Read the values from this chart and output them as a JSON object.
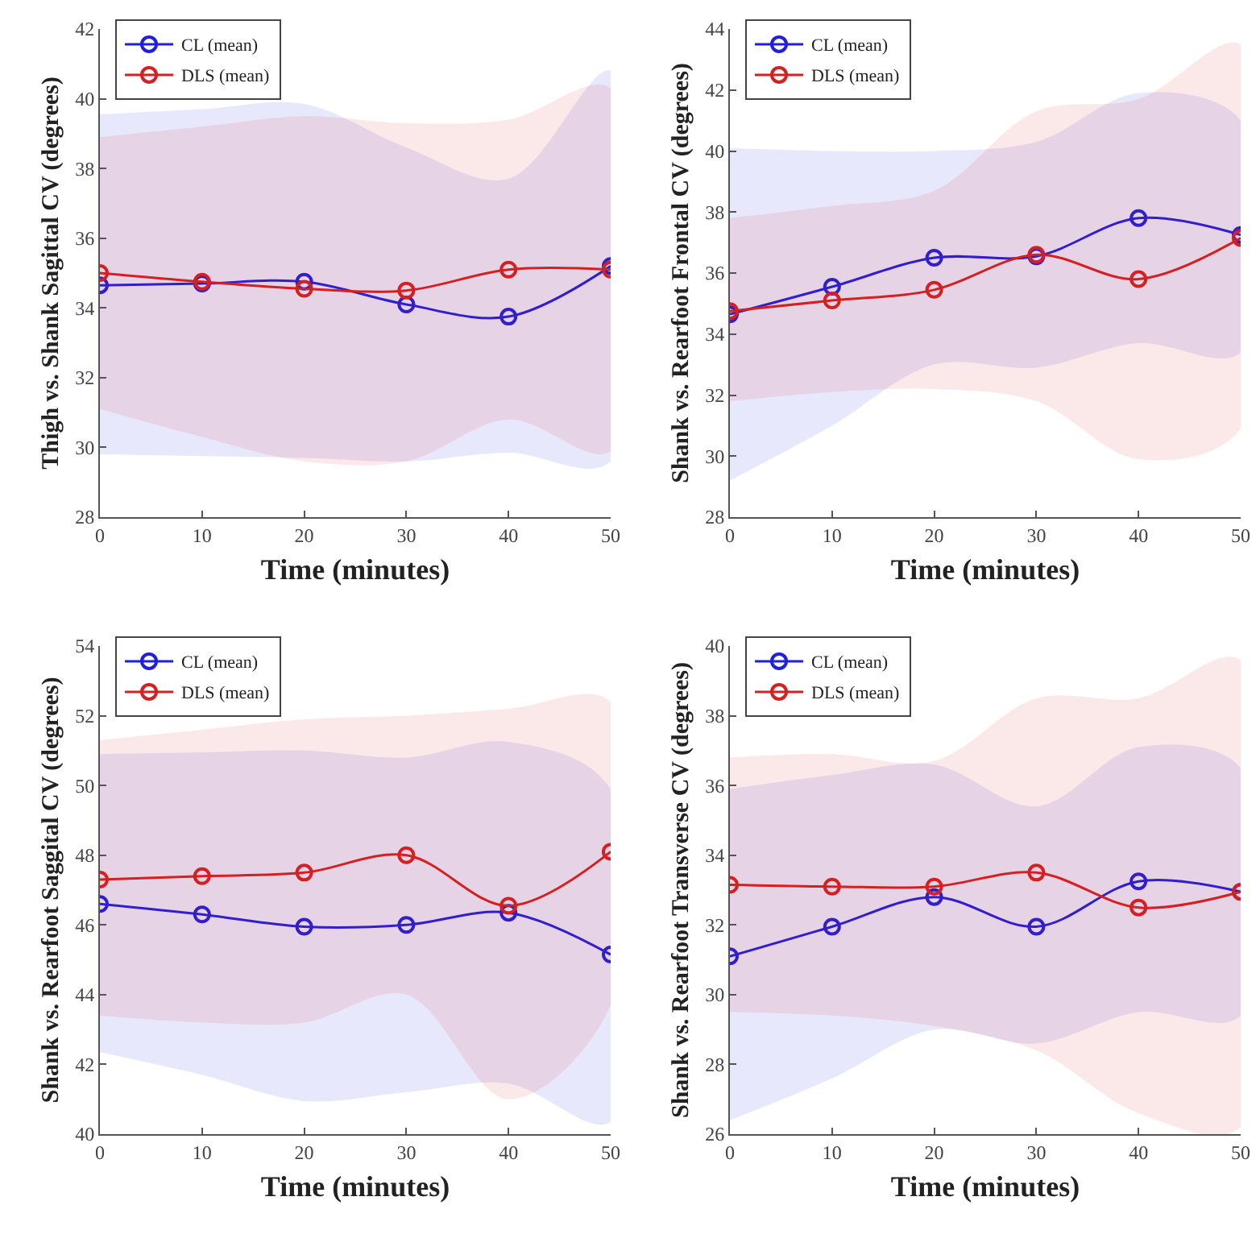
{
  "chart_data": [
    {
      "type": "line",
      "xlabel": "Time (minutes)",
      "ylabel": "Thigh vs. Shank Sagittal CV (degrees)",
      "x": [
        0,
        10,
        20,
        30,
        40,
        50
      ],
      "xlim": [
        0,
        50
      ],
      "xticks": [
        0,
        10,
        20,
        30,
        40,
        50
      ],
      "ylim": [
        28,
        42
      ],
      "yticks": [
        28,
        30,
        32,
        34,
        36,
        38,
        40,
        42
      ],
      "grid": false,
      "legend": "top left",
      "marker": "circle",
      "line_style": "solid",
      "series": [
        {
          "name": "CL (mean)",
          "color": "#1f1fe0",
          "values": [
            34.65,
            34.7,
            34.75,
            34.1,
            33.75,
            35.2
          ],
          "lower": [
            29.8,
            29.75,
            29.7,
            29.6,
            29.85,
            29.6
          ],
          "upper": [
            39.55,
            39.7,
            39.85,
            38.6,
            37.7,
            40.8
          ]
        },
        {
          "name": "DLS (mean)",
          "color": "#d42020",
          "values": [
            35.0,
            34.75,
            34.55,
            34.5,
            35.1,
            35.1
          ],
          "lower": [
            31.1,
            30.3,
            29.6,
            29.6,
            30.8,
            29.9
          ],
          "upper": [
            38.9,
            39.2,
            39.5,
            39.3,
            39.4,
            40.3
          ]
        }
      ]
    },
    {
      "type": "line",
      "xlabel": "Time (minutes)",
      "ylabel": "Shank vs. Rearfoot Frontal CV (degrees)",
      "x": [
        0,
        10,
        20,
        30,
        40,
        50
      ],
      "xlim": [
        0,
        50
      ],
      "xticks": [
        0,
        10,
        20,
        30,
        40,
        50
      ],
      "ylim": [
        28,
        44
      ],
      "yticks": [
        28,
        30,
        32,
        34,
        36,
        38,
        40,
        42,
        44
      ],
      "grid": false,
      "legend": "top left",
      "marker": "circle",
      "line_style": "solid",
      "series": [
        {
          "name": "CL (mean)",
          "color": "#1f1fe0",
          "values": [
            34.65,
            35.55,
            36.5,
            36.55,
            37.8,
            37.25
          ],
          "lower": [
            29.2,
            31.0,
            33.0,
            32.9,
            33.7,
            33.4
          ],
          "upper": [
            40.1,
            40.0,
            40.0,
            40.3,
            41.9,
            41.0
          ]
        },
        {
          "name": "DLS (mean)",
          "color": "#d42020",
          "values": [
            34.75,
            35.1,
            35.45,
            36.6,
            35.8,
            37.15
          ],
          "lower": [
            31.8,
            32.1,
            32.2,
            31.8,
            29.9,
            30.9
          ],
          "upper": [
            37.8,
            38.2,
            38.7,
            41.3,
            41.7,
            43.5
          ]
        }
      ]
    },
    {
      "type": "line",
      "xlabel": "Time (minutes)",
      "ylabel": "Shank vs. Rearfoot Saggital CV (degrees)",
      "x": [
        0,
        10,
        20,
        30,
        40,
        50
      ],
      "xlim": [
        0,
        50
      ],
      "xticks": [
        0,
        10,
        20,
        30,
        40,
        50
      ],
      "ylim": [
        40,
        54
      ],
      "yticks": [
        40,
        42,
        44,
        46,
        48,
        50,
        52,
        54
      ],
      "grid": false,
      "legend": "top left",
      "marker": "circle",
      "line_style": "solid",
      "series": [
        {
          "name": "CL (mean)",
          "color": "#1f1fe0",
          "values": [
            46.6,
            46.3,
            45.95,
            46.0,
            46.35,
            45.15
          ],
          "lower": [
            42.35,
            41.7,
            40.95,
            41.2,
            41.45,
            40.35
          ],
          "upper": [
            50.9,
            50.95,
            51.0,
            50.8,
            51.25,
            49.9
          ]
        },
        {
          "name": "DLS (mean)",
          "color": "#d42020",
          "values": [
            47.3,
            47.4,
            47.5,
            48.0,
            46.55,
            48.1
          ],
          "lower": [
            43.4,
            43.2,
            43.2,
            44.0,
            41.0,
            43.7
          ],
          "upper": [
            51.3,
            51.6,
            51.9,
            52.0,
            52.2,
            52.4
          ]
        }
      ]
    },
    {
      "type": "line",
      "xlabel": "Time (minutes)",
      "ylabel": "Shank vs. Rearfoot Transverse CV (degrees)",
      "x": [
        0,
        10,
        20,
        30,
        40,
        50
      ],
      "xlim": [
        0,
        50
      ],
      "xticks": [
        0,
        10,
        20,
        30,
        40,
        50
      ],
      "ylim": [
        26,
        40
      ],
      "yticks": [
        26,
        28,
        30,
        32,
        34,
        36,
        38,
        40
      ],
      "grid": false,
      "legend": "top left",
      "marker": "circle",
      "line_style": "solid",
      "series": [
        {
          "name": "CL (mean)",
          "color": "#1f1fe0",
          "values": [
            31.1,
            31.95,
            32.8,
            31.95,
            33.25,
            32.95
          ],
          "lower": [
            26.4,
            27.6,
            29.0,
            28.6,
            29.5,
            29.4
          ],
          "upper": [
            35.9,
            36.3,
            36.6,
            35.4,
            37.1,
            36.5
          ]
        },
        {
          "name": "DLS (mean)",
          "color": "#d42020",
          "values": [
            33.15,
            33.1,
            33.1,
            33.5,
            32.5,
            32.95
          ],
          "lower": [
            29.5,
            29.4,
            29.1,
            28.4,
            26.6,
            26.2
          ],
          "upper": [
            36.8,
            36.9,
            36.7,
            38.5,
            38.5,
            39.6
          ]
        }
      ]
    }
  ]
}
